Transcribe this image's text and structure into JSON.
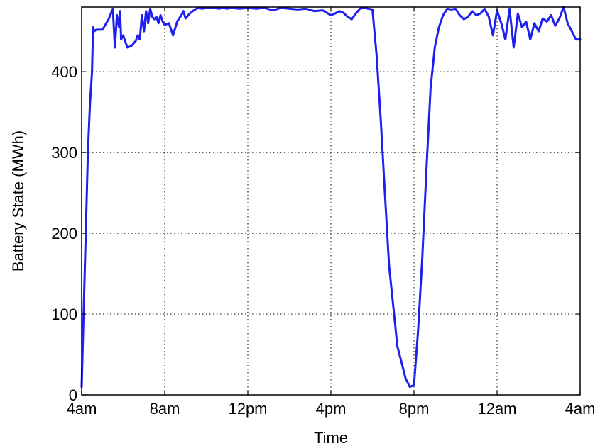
{
  "chart_data": {
    "type": "line",
    "title": "",
    "xlabel": "Time",
    "ylabel": "Battery State (MWh)",
    "x_ticks": [
      {
        "hour": 0,
        "label": "4am"
      },
      {
        "hour": 4,
        "label": "8am"
      },
      {
        "hour": 8,
        "label": "12pm"
      },
      {
        "hour": 12,
        "label": "4pm"
      },
      {
        "hour": 16,
        "label": "8pm"
      },
      {
        "hour": 20,
        "label": "12am"
      },
      {
        "hour": 24,
        "label": "4am"
      }
    ],
    "y_ticks": [
      {
        "value": 0,
        "label": "0"
      },
      {
        "value": 100,
        "label": "100"
      },
      {
        "value": 200,
        "label": "200"
      },
      {
        "value": 300,
        "label": "300"
      },
      {
        "value": 400,
        "label": "400"
      }
    ],
    "xlim": [
      0,
      24
    ],
    "ylim": [
      0,
      480
    ],
    "grid": true,
    "colors": {
      "line": "#1f1ff0",
      "grid": "#000000",
      "axes": "#000000"
    },
    "series": [
      {
        "hours": [
          0,
          0.05,
          0.2,
          0.3,
          0.4,
          0.5,
          0.55,
          0.6,
          0.7,
          1.0,
          1.3,
          1.5,
          1.6,
          1.7,
          1.8,
          1.85,
          1.9,
          2.0,
          2.2,
          2.4,
          2.5,
          2.6,
          2.7,
          2.8,
          2.9,
          3.0,
          3.1,
          3.2,
          3.3,
          3.4,
          3.5,
          3.6,
          3.7,
          3.8,
          3.9,
          4.0,
          4.2,
          4.4,
          4.6,
          4.8,
          4.9,
          5.0,
          5.2,
          5.4,
          5.6,
          5.8,
          6.0,
          6.2,
          6.4,
          6.6,
          6.8,
          7.0,
          7.2,
          7.6,
          8.0,
          8.4,
          8.8,
          9.2,
          9.6,
          10.0,
          10.4,
          10.8,
          11.2,
          11.6,
          12.0,
          12.2,
          12.4,
          12.6,
          12.8,
          13.0,
          13.2,
          13.4,
          13.6,
          13.8,
          14.0,
          14.2,
          14.4,
          14.6,
          14.8,
          15.0,
          15.2,
          15.4,
          15.6,
          15.8,
          16.0,
          16.2,
          16.4,
          16.6,
          16.8,
          17.0,
          17.2,
          17.4,
          17.6,
          17.8,
          18.0,
          18.2,
          18.4,
          18.6,
          18.8,
          19.0,
          19.2,
          19.4,
          19.6,
          19.8,
          20.0,
          20.2,
          20.4,
          20.6,
          20.8,
          21.0,
          21.2,
          21.4,
          21.6,
          21.8,
          22.0,
          22.2,
          22.4,
          22.6,
          22.8,
          23.0,
          23.2,
          23.4,
          23.6,
          23.8,
          24.0
        ],
        "values": [
          10,
          60,
          200,
          300,
          360,
          400,
          455,
          450,
          452,
          452,
          465,
          478,
          430,
          470,
          455,
          475,
          440,
          445,
          430,
          432,
          435,
          438,
          445,
          440,
          470,
          450,
          475,
          460,
          478,
          468,
          465,
          468,
          460,
          470,
          462,
          458,
          460,
          445,
          462,
          470,
          475,
          466,
          472,
          476,
          479,
          478,
          479,
          479,
          479,
          478,
          479,
          478,
          479,
          478,
          479,
          478,
          479,
          476,
          479,
          478,
          477,
          478,
          475,
          476,
          470,
          472,
          475,
          473,
          468,
          465,
          472,
          478,
          479,
          478,
          477,
          420,
          340,
          250,
          160,
          110,
          60,
          40,
          20,
          10,
          12,
          80,
          170,
          280,
          380,
          430,
          455,
          470,
          478,
          477,
          478,
          470,
          465,
          468,
          475,
          470,
          472,
          478,
          468,
          445,
          476,
          460,
          440,
          478,
          430,
          472,
          455,
          462,
          440,
          460,
          450,
          466,
          462,
          470,
          457,
          466,
          480,
          460,
          450,
          440,
          440
        ]
      }
    ]
  }
}
